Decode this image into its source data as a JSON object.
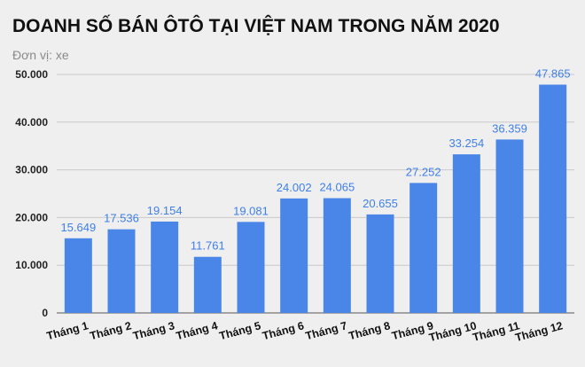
{
  "chart_data": {
    "type": "bar",
    "title": "DOANH SỐ BÁN ÔTÔ TẠI VIỆT NAM TRONG NĂM 2020",
    "subtitle": "Đơn vị: xe",
    "xlabel": "",
    "ylabel": "",
    "categories": [
      "Tháng 1",
      "Tháng 2",
      "Tháng 3",
      "Tháng 4",
      "Tháng 5",
      "Tháng 6",
      "Tháng 7",
      "Tháng 8",
      "Tháng 9",
      "Tháng 10",
      "Tháng 11",
      "Tháng 12"
    ],
    "values": [
      15649,
      17536,
      19154,
      11761,
      19081,
      24002,
      24065,
      20655,
      27252,
      33254,
      36359,
      47865
    ],
    "data_labels": [
      "15.649",
      "17.536",
      "19.154",
      "11.761",
      "19.081",
      "24.002",
      "24.065",
      "20.655",
      "27.252",
      "33.254",
      "36.359",
      "47.865"
    ],
    "ylim": [
      0,
      50000
    ],
    "yticks": [
      0,
      10000,
      20000,
      30000,
      40000,
      50000
    ],
    "ytick_labels": [
      "0",
      "10.000",
      "20.000",
      "30.000",
      "40.000",
      "50.000"
    ],
    "grid": true,
    "legend": "none",
    "bar_color": "#4a86e8",
    "label_color": "#3f7fe8"
  }
}
